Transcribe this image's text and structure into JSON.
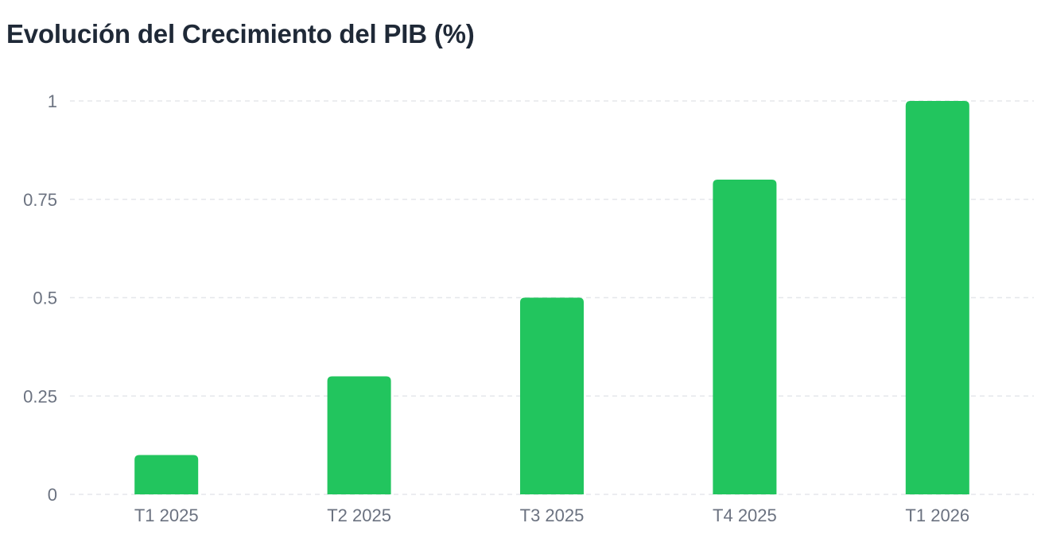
{
  "chart_data": {
    "type": "bar",
    "title": "Evolución del Crecimiento del PIB (%)",
    "xlabel": "",
    "ylabel": "",
    "categories": [
      "T1 2025",
      "T2 2025",
      "T3 2025",
      "T4 2025",
      "T1 2026"
    ],
    "values": [
      0.1,
      0.3,
      0.5,
      0.8,
      1
    ],
    "ylim": [
      0,
      1
    ],
    "yticks": [
      0,
      0.25,
      0.5,
      0.75,
      1
    ],
    "ytick_labels": [
      "0",
      "0.25",
      "0.5",
      "0.75",
      "1"
    ],
    "grid": true,
    "legend": "none",
    "colors": {
      "bar": "#22c55e",
      "grid": "#e5e7eb",
      "tick_text": "#6b7280",
      "title": "#1f2937"
    }
  }
}
